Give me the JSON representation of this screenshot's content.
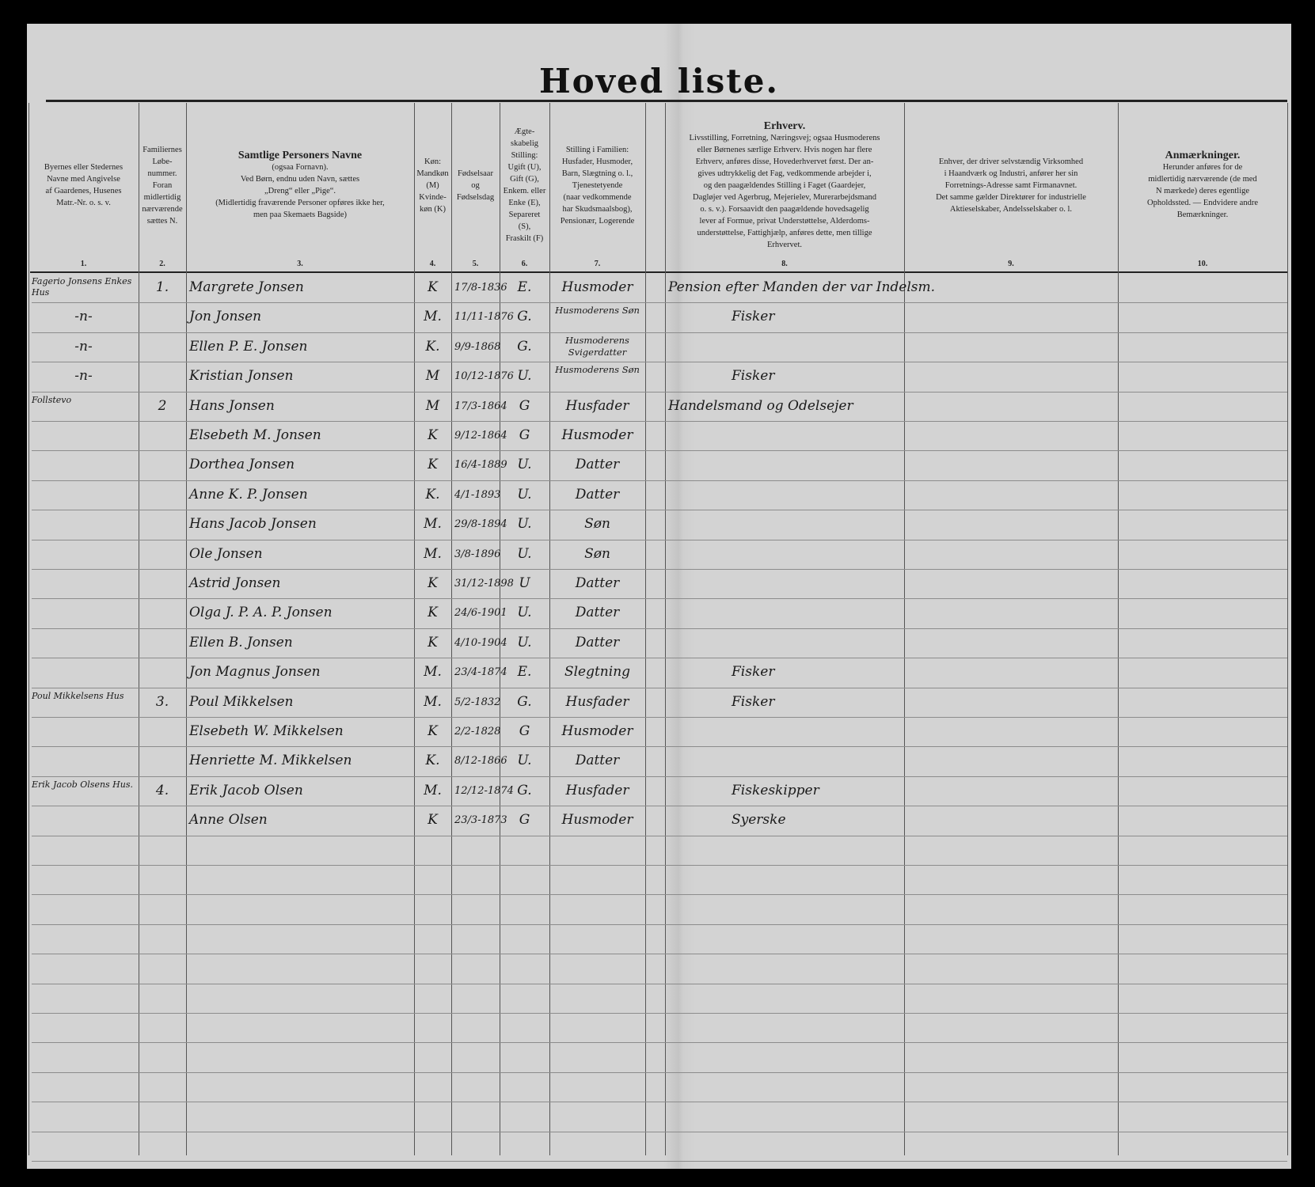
{
  "title": "Hoved liste.",
  "columns": [
    {
      "num": "1.",
      "header": [
        "Byernes eller Stedernes",
        "Navne med Angivelse",
        "af Gaardenes, Husenes",
        "Matr.-Nr. o. s. v."
      ]
    },
    {
      "num": "2.",
      "header": [
        "Familiernes",
        "Løbe-",
        "nummer.",
        "Foran",
        "midlertidig",
        "nærværende",
        "sættes N."
      ]
    },
    {
      "num": "3.",
      "header": [
        "Samtlige Personers Navne",
        "(ogsaa Fornavn).",
        "Ved Børn, endnu uden Navn, sættes",
        "„Dreng“ eller „Pige“.",
        "(Midlertidig fraværende Personer opføres ikke her,",
        "men paa Skemaets Bagside)"
      ]
    },
    {
      "num": "4.",
      "header": [
        "Køn:",
        "Mandkøn",
        "(M)",
        "Kvinde-",
        "køn (K)"
      ]
    },
    {
      "num": "5.",
      "header": [
        "Fødselsaar",
        "og",
        "Fødselsdag"
      ]
    },
    {
      "num": "6.",
      "header": [
        "Ægte-",
        "skabelig",
        "Stilling:",
        "Ugift (U),",
        "Gift (G),",
        "Enkem. eller",
        "Enke (E),",
        "Separeret",
        "(S),",
        "Fraskilt (F)"
      ]
    },
    {
      "num": "7.",
      "header": [
        "Stilling i Familien:",
        "Husfader, Husmoder,",
        "Barn, Slægtning o. l.,",
        "Tjenestetyende",
        "(naar vedkommende",
        "har Skudsmaalsbog),",
        "Pensionær, Logerende"
      ]
    },
    {
      "num": "8.",
      "header": [
        "Erhverv.",
        "Livsstilling, Forretning, Næringsvej; ogsaa Husmoderens",
        "eller Børnenes særlige Erhverv. Hvis nogen har flere",
        "Erhverv, anføres disse, Hovederhvervet først. Der an-",
        "gives udtrykkelig det Fag, vedkommende arbejder i,",
        "og den paagældendes Stilling i Faget (Gaardejer,",
        "Dagløjer ved Agerbrug, Mejerielev, Murerarbejdsmand",
        "o. s. v.). Forsaavidt den paagældende hovedsagelig",
        "lever af Formue, privat Understøttelse, Alderdoms-",
        "understøttelse, Fattighjælp, anføres dette, men tillige",
        "Erhvervet."
      ]
    },
    {
      "num": "9.",
      "header": [
        "Enhver, der driver selvstændig Virksomhed",
        "i Haandværk og Industri, anfører her sin",
        "Forretnings-Adresse samt Firmanavnet.",
        "Det samme gælder Direktører for industrielle",
        "Aktieselskaber, Andelsselskaber o. l."
      ]
    },
    {
      "num": "10.",
      "header": [
        "Anmærkninger.",
        "Herunder anføres for de",
        "midlertidig nærværende (de med",
        "N mærkede) deres egentlige",
        "Opholdssted. — Endvidere andre",
        "Bemærkninger."
      ]
    }
  ],
  "rows": [
    {
      "place": "Fagerio Jonsens Enkes Hus",
      "fam": "1.",
      "name": "Margrete Jonsen",
      "sex": "K",
      "born": "17/8-1836",
      "civil": "E.",
      "role": "Husmoder",
      "occupation": "Pension efter Manden der var Indelsm."
    },
    {
      "place": "-n-",
      "fam": "",
      "name": "Jon Jonsen",
      "sex": "M.",
      "born": "11/11-1876",
      "civil": "G.",
      "role": "Husmoderens Søn",
      "occupation": "Fisker"
    },
    {
      "place": "-n-",
      "fam": "",
      "name": "Ellen P. E. Jonsen",
      "sex": "K.",
      "born": "9/9-1868",
      "civil": "G.",
      "role": "Husmoderens Svigerdatter",
      "occupation": ""
    },
    {
      "place": "-n-",
      "fam": "",
      "name": "Kristian Jonsen",
      "sex": "M",
      "born": "10/12-1876",
      "civil": "U.",
      "role": "Husmoderens Søn",
      "occupation": "Fisker"
    },
    {
      "place": "Follstevo",
      "fam": "2",
      "name": "Hans Jonsen",
      "sex": "M",
      "born": "17/3-1864",
      "civil": "G",
      "role": "Husfader",
      "occupation": "Handelsmand og Odelsejer"
    },
    {
      "place": "",
      "fam": "",
      "name": "Elsebeth M. Jonsen",
      "sex": "K",
      "born": "9/12-1864",
      "civil": "G",
      "role": "Husmoder",
      "occupation": ""
    },
    {
      "place": "",
      "fam": "",
      "name": "Dorthea Jonsen",
      "sex": "K",
      "born": "16/4-1889",
      "civil": "U.",
      "role": "Datter",
      "occupation": ""
    },
    {
      "place": "",
      "fam": "",
      "name": "Anne K. P. Jonsen",
      "sex": "K.",
      "born": "4/1-1893",
      "civil": "U.",
      "role": "Datter",
      "occupation": ""
    },
    {
      "place": "",
      "fam": "",
      "name": "Hans Jacob Jonsen",
      "sex": "M.",
      "born": "29/8-1894",
      "civil": "U.",
      "role": "Søn",
      "occupation": ""
    },
    {
      "place": "",
      "fam": "",
      "name": "Ole Jonsen",
      "sex": "M.",
      "born": "3/8-1896",
      "civil": "U.",
      "role": "Søn",
      "occupation": ""
    },
    {
      "place": "",
      "fam": "",
      "name": "Astrid Jonsen",
      "sex": "K",
      "born": "31/12-1898",
      "civil": "U",
      "role": "Datter",
      "occupation": ""
    },
    {
      "place": "",
      "fam": "",
      "name": "Olga J. P. A. P. Jonsen",
      "sex": "K",
      "born": "24/6-1901",
      "civil": "U.",
      "role": "Datter",
      "occupation": ""
    },
    {
      "place": "",
      "fam": "",
      "name": "Ellen B. Jonsen",
      "sex": "K",
      "born": "4/10-1904",
      "civil": "U.",
      "role": "Datter",
      "occupation": ""
    },
    {
      "place": "",
      "fam": "",
      "name": "Jon Magnus Jonsen",
      "sex": "M.",
      "born": "23/4-1874",
      "civil": "E.",
      "role": "Slegtning",
      "occupation": "Fisker"
    },
    {
      "place": "Poul Mikkelsens Hus",
      "fam": "3.",
      "name": "Poul Mikkelsen",
      "sex": "M.",
      "born": "5/2-1832",
      "civil": "G.",
      "role": "Husfader",
      "occupation": "Fisker"
    },
    {
      "place": "",
      "fam": "",
      "name": "Elsebeth W. Mikkelsen",
      "sex": "K",
      "born": "2/2-1828",
      "civil": "G",
      "role": "Husmoder",
      "occupation": ""
    },
    {
      "place": "",
      "fam": "",
      "name": "Henriette M. Mikkelsen",
      "sex": "K.",
      "born": "8/12-1866",
      "civil": "U.",
      "role": "Datter",
      "occupation": ""
    },
    {
      "place": "Erik Jacob Olsens Hus.",
      "fam": "4.",
      "name": "Erik Jacob Olsen",
      "sex": "M.",
      "born": "12/12-1874",
      "civil": "G.",
      "role": "Husfader",
      "occupation": "Fiskeskipper"
    },
    {
      "place": "",
      "fam": "",
      "name": "Anne Olsen",
      "sex": "K",
      "born": "23/3-1873",
      "civil": "G",
      "role": "Husmoder",
      "occupation": "Syerske"
    }
  ]
}
